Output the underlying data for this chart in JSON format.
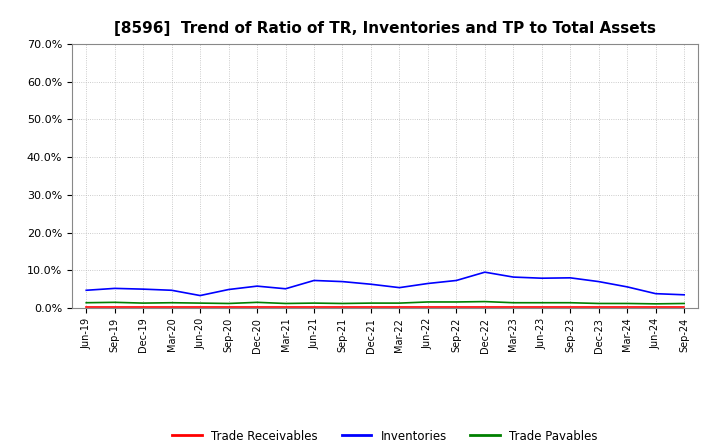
{
  "title": "[8596]  Trend of Ratio of TR, Inventories and TP to Total Assets",
  "x_labels": [
    "Jun-19",
    "Sep-19",
    "Dec-19",
    "Mar-20",
    "Jun-20",
    "Sep-20",
    "Dec-20",
    "Mar-21",
    "Jun-21",
    "Sep-21",
    "Dec-21",
    "Mar-22",
    "Jun-22",
    "Sep-22",
    "Dec-22",
    "Mar-23",
    "Jun-23",
    "Sep-23",
    "Dec-23",
    "Mar-24",
    "Jun-24",
    "Sep-24"
  ],
  "trade_receivables": [
    0.003,
    0.003,
    0.003,
    0.003,
    0.003,
    0.003,
    0.003,
    0.003,
    0.003,
    0.003,
    0.003,
    0.003,
    0.003,
    0.003,
    0.003,
    0.003,
    0.003,
    0.003,
    0.003,
    0.003,
    0.003,
    0.003
  ],
  "inventories": [
    0.047,
    0.052,
    0.05,
    0.047,
    0.033,
    0.049,
    0.058,
    0.051,
    0.073,
    0.07,
    0.063,
    0.054,
    0.065,
    0.073,
    0.095,
    0.082,
    0.079,
    0.08,
    0.07,
    0.056,
    0.038,
    0.035
  ],
  "trade_payables": [
    0.014,
    0.015,
    0.013,
    0.014,
    0.013,
    0.012,
    0.015,
    0.012,
    0.013,
    0.012,
    0.013,
    0.013,
    0.016,
    0.016,
    0.017,
    0.014,
    0.014,
    0.014,
    0.012,
    0.012,
    0.011,
    0.012
  ],
  "tr_color": "#FF0000",
  "inv_color": "#0000FF",
  "tp_color": "#008000",
  "ylim": [
    0.0,
    0.7
  ],
  "yticks": [
    0.0,
    0.1,
    0.2,
    0.3,
    0.4,
    0.5,
    0.6,
    0.7
  ],
  "ytick_labels": [
    "0.0%",
    "10.0%",
    "20.0%",
    "30.0%",
    "40.0%",
    "50.0%",
    "60.0%",
    "70.0%"
  ],
  "background_color": "#FFFFFF",
  "plot_bg_color": "#FFFFFF",
  "grid_color": "#BBBBBB",
  "title_fontsize": 11,
  "legend_labels": [
    "Trade Receivables",
    "Inventories",
    "Trade Payables"
  ]
}
